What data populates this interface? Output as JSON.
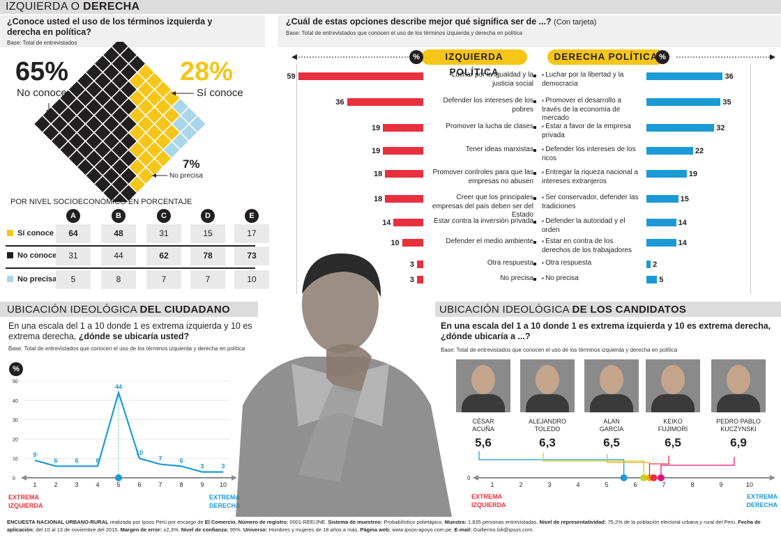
{
  "header": {
    "title_plain": "IZQUIERDA O ",
    "title_bold": "DERECHA"
  },
  "colors": {
    "yellow": "#f5c518",
    "black": "#231f20",
    "lightblue": "#aad6ec",
    "red": "#e8303e",
    "blue": "#1b9ad6",
    "grey": "#dcdcdc"
  },
  "knowledge": {
    "question": "¿Conoce usted el uso de los términos izquierda y derecha en política?",
    "base": "Base: Total de entrevistados",
    "no_pct": "65%",
    "no_label": "No conoce",
    "yes_pct": "28%",
    "yes_label": "Sí conoce",
    "np_pct": "7%",
    "np_label": "No precisa"
  },
  "nse": {
    "title": "POR NIVEL SOCIOECONÓMICO EN PORCENTAJE",
    "levels": [
      "A",
      "B",
      "C",
      "D",
      "E"
    ],
    "rows": [
      {
        "label": "Sí conoce",
        "values": [
          "64",
          "48",
          "31",
          "15",
          "17"
        ]
      },
      {
        "label": "No conoce",
        "values": [
          "31",
          "44",
          "62",
          "78",
          "73"
        ]
      },
      {
        "label": "No precisa",
        "values": [
          "5",
          "8",
          "7",
          "7",
          "10"
        ]
      }
    ]
  },
  "meaning": {
    "question": "¿Cuál de estas opciones describe mejor qué significa ser de ...?",
    "question_note": "(Con tarjeta)",
    "base": "Base: Total de entrevistados que conocen el uso de los términos izquierda y derecha en política",
    "left_header": "IZQUIERDA POLÍTICA",
    "right_header": "DERECHA POLÍTICA",
    "pct_symbol": "%"
  },
  "citizen": {
    "title_plain": "UBICACIÓN IDEOLÓGICA ",
    "title_bold": "DEL CIUDADANO",
    "question": "En una escala del 1 a 10 donde 1 es extrema izquierda y 10 es extrema derecha,",
    "question_bold": "¿dónde se ubicaría usted?",
    "base": "Base: Total de entrevistados que conocen el uso de los términos izquierda y derecha en política",
    "pct_symbol": "%",
    "left_extreme": [
      "EXTREMA",
      "IZQUIERDA"
    ],
    "right_extreme": [
      "EXTREMA",
      "DERECHA"
    ]
  },
  "candidates": {
    "title_plain": "UBICACIÓN IDEOLÓGICA ",
    "title_bold": "DE LOS CANDIDATOS",
    "question": "En una escala del 1 a 10 donde 1 es extrema izquierda y 10 es extrema derecha,",
    "question_bold": "¿dónde ubicaría a ...?",
    "base": "Base: Total de entrevistados que conocen el uso de los términos izquierda y derecha en política",
    "left_extreme": [
      "EXTREMA",
      "IZQUIERDA"
    ],
    "right_extreme": [
      "EXTREMA",
      "DERECHA"
    ],
    "people": [
      {
        "name1": "CÉSAR",
        "name2": "ACUÑA",
        "score": "5,6",
        "color": "#1b9ad6"
      },
      {
        "name1": "ALEJANDRO",
        "name2": "TOLEDO",
        "score": "6,3",
        "color": "#c9d21c"
      },
      {
        "name1": "ALAN",
        "name2": "GARCÍA",
        "score": "6,5",
        "color": "#f5a623"
      },
      {
        "name1": "KEIKO",
        "name2": "FUJIMORI",
        "score": "6,5",
        "color": "#e8303e"
      },
      {
        "name1": "PEDRO PABLO",
        "name2": "KUCZYNSKI",
        "score": "6,9",
        "color": "#e0147a"
      }
    ]
  },
  "footer": {
    "b1": "ENCUESTA NACIONAL URBANO-RURAL",
    "t1": " realizada por Ipsos Perú por encargo de ",
    "b2": "El Comercio. Número de registro:",
    "t2": " 0001-REE/JNE. ",
    "b3": "Sistema de muestreo:",
    "t3": " Probabilístico polietápico. ",
    "b4": "Muestra:",
    "t4": " 1.835 personas entrevistadas. ",
    "b5": "Nivel de representatividad:",
    "t5": " 75,2% de la población electoral urbana y rural del Perú. ",
    "b6": "Fecha de aplicación:",
    "t6": " del 10 al 13 de noviembre del 2015. ",
    "b7": "Margen de error:",
    "t7": " ±2,3%. ",
    "b8": "Nivel de confianza:",
    "t8": " 95%. ",
    "b9": "Universo:",
    "t9": " Hombres y mujeres de 18 años a más. ",
    "b10": "Página web:",
    "t10": " www.ipsos-apoyo.com.pe. ",
    "b11": "E-mail:",
    "t11": " Guillermo.loli@ipsos.com."
  },
  "chart_data": [
    {
      "type": "waffle",
      "categories": [
        "No conoce",
        "Sí conoce",
        "No precisa"
      ],
      "values": [
        65,
        28,
        7
      ],
      "title": "¿Conoce usted el uso de los términos izquierda y derecha en política?"
    },
    {
      "type": "table",
      "title": "POR NIVEL SOCIOECONÓMICO EN PORCENTAJE",
      "columns": [
        "A",
        "B",
        "C",
        "D",
        "E"
      ],
      "rows": {
        "Sí conoce": [
          64,
          48,
          31,
          15,
          17
        ],
        "No conoce": [
          31,
          44,
          62,
          78,
          73
        ],
        "No precisa": [
          5,
          8,
          7,
          7,
          10
        ]
      }
    },
    {
      "type": "bar",
      "title": "IZQUIERDA POLÍTICA",
      "categories": [
        "Luchar por la igualdad y la justicia social",
        "Defender los intereses de los pobres",
        "Promover la lucha de clases",
        "Tener ideas marxistas",
        "Promover controles para que las empresas no abusen",
        "Creer que los principales empresas del país deben ser del Estado",
        "Estar contra la inversión privada",
        "Defender el medio ambiente",
        "Otra respuesta",
        "No precisa"
      ],
      "values": [
        59,
        36,
        19,
        19,
        18,
        18,
        14,
        10,
        3,
        3
      ]
    },
    {
      "type": "bar",
      "title": "DERECHA POLÍTICA",
      "categories": [
        "Luchar por la libertad y la democracia",
        "Promover el desarrollo a través de la economía de mercado",
        "Estar a favor de la empresa privada",
        "Defender los intereses de los ricos",
        "Entregar la riqueza nacional a intereses extranjeros",
        "Ser conservador, defender las tradiciones",
        "Defender la autoridad y el orden",
        "Estar en contra de los derechos de los trabajadores",
        "Otra respuesta",
        "No precisa"
      ],
      "values": [
        36,
        35,
        32,
        22,
        19,
        15,
        14,
        14,
        2,
        5
      ]
    },
    {
      "type": "line",
      "title": "UBICACIÓN IDEOLÓGICA DEL CIUDADANO",
      "x": [
        1,
        2,
        3,
        4,
        5,
        6,
        7,
        8,
        9,
        10
      ],
      "values": [
        9,
        6,
        6,
        6,
        44,
        10,
        7,
        6,
        3,
        3
      ],
      "ylim": [
        0,
        50
      ],
      "yticks": [
        0,
        10,
        20,
        30,
        40,
        50
      ],
      "ylabel": "%"
    },
    {
      "type": "scatter",
      "title": "UBICACIÓN IDEOLÓGICA DE LOS CANDIDATOS",
      "categories": [
        "CÉSAR ACUÑA",
        "ALEJANDRO TOLEDO",
        "ALAN GARCÍA",
        "KEIKO FUJIMORI",
        "PEDRO PABLO KUCZYNSKI"
      ],
      "values": [
        5.6,
        6.3,
        6.5,
        6.5,
        6.9
      ],
      "xlim": [
        0,
        10
      ]
    }
  ]
}
